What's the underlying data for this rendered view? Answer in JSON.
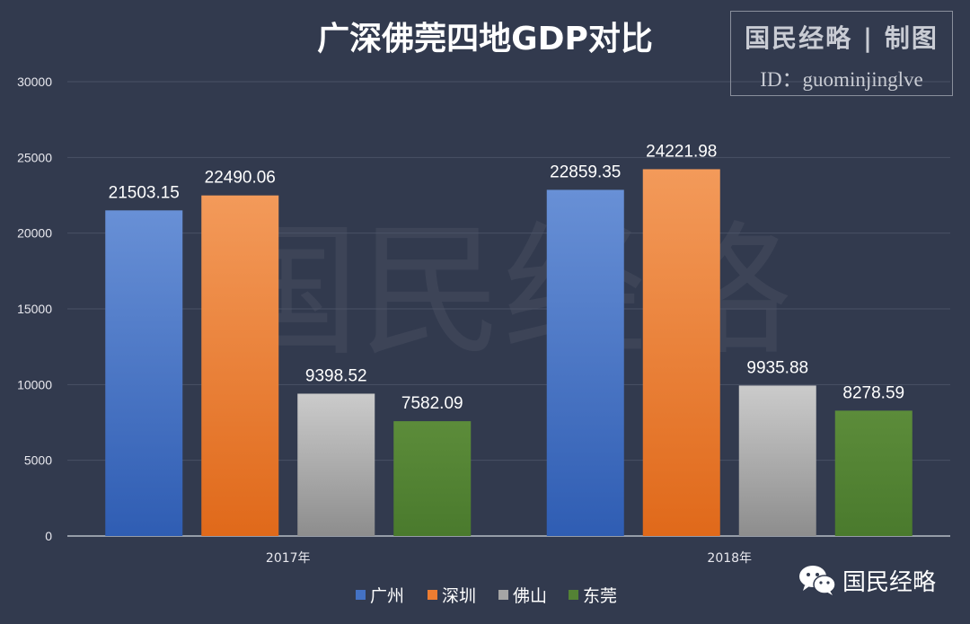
{
  "chart_data": {
    "type": "bar",
    "title": "广深佛莞四地GDP对比",
    "categories": [
      "2017年",
      "2018年"
    ],
    "series": [
      {
        "name": "广州",
        "values": [
          21503.15,
          22859.35
        ],
        "labels": [
          "21503.15",
          "22859.35"
        ],
        "color": "#4472c4"
      },
      {
        "name": "深圳",
        "values": [
          22490.06,
          24221.98
        ],
        "labels": [
          "22490.06",
          "24221.98"
        ],
        "color": "#ed7d31"
      },
      {
        "name": "佛山",
        "values": [
          9398.52,
          9935.88
        ],
        "labels": [
          "9398.52",
          "9935.88"
        ],
        "color": "#a5a5a5"
      },
      {
        "name": "东莞",
        "values": [
          7582.09,
          8278.59
        ],
        "labels": [
          "7582.09",
          "8278.59"
        ],
        "color": "#548235"
      }
    ],
    "ylim": [
      0,
      30000
    ],
    "yticks": [
      0,
      5000,
      10000,
      15000,
      20000,
      25000,
      30000
    ],
    "legend_position": "bottom",
    "grid": true
  },
  "stamp": {
    "title": "国民经略 | 制图",
    "id": "ID：guominjinglve"
  },
  "watermark": "国民经略",
  "brand": {
    "name": "国民经略",
    "icon": "wechat-icon"
  }
}
